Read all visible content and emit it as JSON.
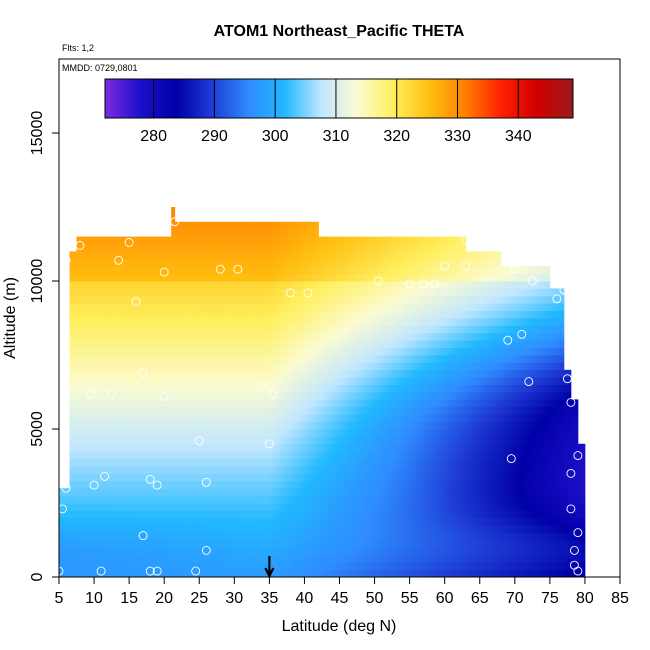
{
  "chart_data": {
    "type": "heatmap",
    "title": "ATOM1 Northeast_Pacific THETA",
    "flights_label": "Flts: 1,2",
    "date_label": "MMDD: 0729,0801",
    "xlabel": "Latitude (deg N)",
    "ylabel": "Altitude (m)",
    "xlim": [
      5,
      85
    ],
    "ylim": [
      0,
      17500
    ],
    "xticks": [
      "5",
      "10",
      "15",
      "20",
      "25",
      "30",
      "35",
      "40",
      "45",
      "50",
      "55",
      "60",
      "65",
      "70",
      "75",
      "80",
      "85"
    ],
    "yticks": [
      "0",
      "5000",
      "10000",
      "15000"
    ],
    "colorbar": {
      "range": [
        272,
        349
      ],
      "ticks": [
        "280",
        "290",
        "300",
        "310",
        "320",
        "330",
        "340"
      ]
    },
    "marker_latitude": 35,
    "grid": false,
    "colormap_stops": [
      "#7b2be0",
      "#1c0fc9",
      "#0000a8",
      "#1f3ed6",
      "#2f8cff",
      "#22b9ff",
      "#bfe6ff",
      "#fbfbd2",
      "#fff060",
      "#ffbf10",
      "#ff8000",
      "#ff2000",
      "#d00000",
      "#9a1b1b"
    ]
  }
}
